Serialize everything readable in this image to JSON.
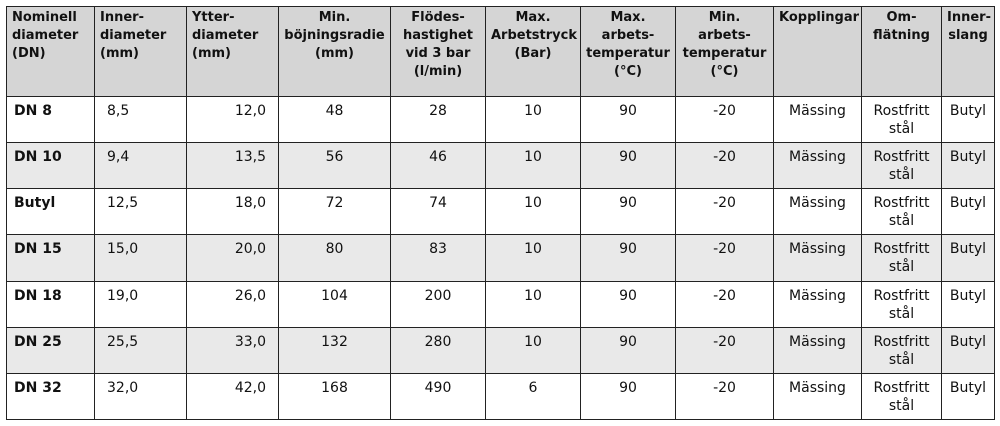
{
  "headers": [
    "Nominell\ndiameter\n(DN)",
    "Inner-\ndiameter\n(mm)",
    "Ytter-\ndiameter\n(mm)",
    "Min.\nböjningsradie\n(mm)",
    "Flödes-\nhastighet\nvid 3 bar\n(l/min)",
    "Max.\nArbetstryck\n(Bar)",
    "Max.\narbets-\ntemperatur\n(°C)",
    "Min.\narbets-\ntemperatur\n(°C)",
    "Kopplingar",
    "Om-\nflätning",
    "Inner-\nslang"
  ],
  "rows": [
    [
      "DN 8",
      "8,5",
      "12,0",
      "48",
      "28",
      "10",
      "90",
      "-20",
      "Mässing",
      "Rostfritt stål",
      "Butyl"
    ],
    [
      "DN 10",
      "9,4",
      "13,5",
      "56",
      "46",
      "10",
      "90",
      "-20",
      "Mässing",
      "Rostfritt stål",
      "Butyl"
    ],
    [
      "Butyl",
      "12,5",
      "18,0",
      "72",
      "74",
      "10",
      "90",
      "-20",
      "Mässing",
      "Rostfritt stål",
      "Butyl"
    ],
    [
      "DN 15",
      "15,0",
      "20,0",
      "80",
      "83",
      "10",
      "90",
      "-20",
      "Mässing",
      "Rostfritt stål",
      "Butyl"
    ],
    [
      "DN 18",
      "19,0",
      "26,0",
      "104",
      "200",
      "10",
      "90",
      "-20",
      "Mässing",
      "Rostfritt stål",
      "Butyl"
    ],
    [
      "DN 25",
      "25,5",
      "33,0",
      "132",
      "280",
      "10",
      "90",
      "-20",
      "Mässing",
      "Rostfritt stål",
      "Butyl"
    ],
    [
      "DN 32",
      "32,0",
      "42,0",
      "168",
      "490",
      "6",
      "90",
      "-20",
      "Mässing",
      "Rostfritt stål",
      "Butyl"
    ]
  ]
}
